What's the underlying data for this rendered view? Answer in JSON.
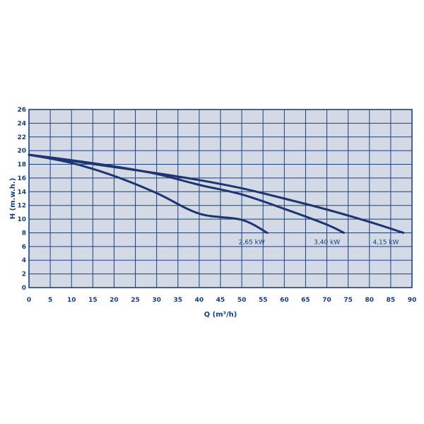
{
  "chart_data": {
    "type": "line",
    "xlabel": "Q (m³/h)",
    "ylabel": "H (m.w.h.)",
    "xlim": [
      0,
      90
    ],
    "ylim": [
      0,
      26
    ],
    "x_ticks": [
      "0",
      "5",
      "10",
      "15",
      "20",
      "25",
      "30",
      "35",
      "40",
      "45",
      "50",
      "55",
      "60",
      "65",
      "70",
      "75",
      "80",
      "85",
      "90"
    ],
    "y_ticks": [
      "0",
      "2",
      "4",
      "6",
      "8",
      "10",
      "12",
      "14",
      "16",
      "18",
      "20",
      "22",
      "24",
      "26"
    ],
    "grid": true,
    "colors": {
      "plot_bg": "#d3dae6",
      "grid": "#1e3f7e",
      "line": "#1e3570",
      "text": "#1a3d7a"
    },
    "series": [
      {
        "name": "2,65 kW",
        "x": [
          0,
          10,
          20,
          30,
          40,
          50,
          56
        ],
        "y": [
          19.4,
          18.2,
          16.3,
          13.8,
          10.8,
          9.9,
          8.0
        ]
      },
      {
        "name": "3,40 kW",
        "x": [
          0,
          10,
          20,
          30,
          40,
          50,
          60,
          70,
          74
        ],
        "y": [
          19.4,
          18.6,
          17.7,
          16.6,
          15.0,
          13.6,
          11.5,
          9.2,
          8.0
        ]
      },
      {
        "name": "4,15 kW",
        "x": [
          0,
          10,
          20,
          30,
          40,
          50,
          60,
          70,
          80,
          88
        ],
        "y": [
          19.4,
          18.5,
          17.6,
          16.7,
          15.7,
          14.5,
          13.0,
          11.4,
          9.6,
          8.0
        ]
      }
    ]
  }
}
